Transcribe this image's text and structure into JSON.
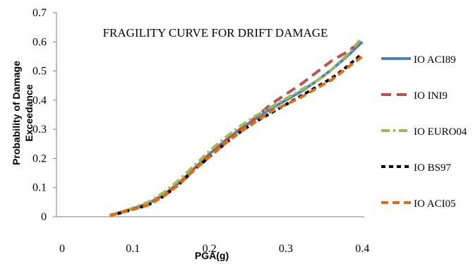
{
  "chart_data": {
    "type": "line",
    "title": "FRAGILITY CURVE FOR DRIFT DAMAGE",
    "xlabel": "PGA(g)",
    "ylabel": "Probability of Damage Exceedance",
    "xlim": [
      0,
      0.4
    ],
    "ylim": [
      0,
      0.7
    ],
    "x_ticks": [
      "0",
      "0.1",
      "0.2",
      "0.3",
      "0.4"
    ],
    "y_ticks": [
      "0",
      "0.1",
      "0.2",
      "0.3",
      "0.4",
      "0.5",
      "0.6",
      "0.7"
    ],
    "grid": false,
    "legend_position": "right",
    "series": [
      {
        "name": "IO ACI89",
        "color": "#4f81bd",
        "dash": "solid",
        "points": [
          [
            0.07,
            0.005
          ],
          [
            0.08,
            0.012
          ],
          [
            0.09,
            0.02
          ],
          [
            0.1,
            0.028
          ],
          [
            0.12,
            0.045
          ],
          [
            0.14,
            0.075
          ],
          [
            0.16,
            0.115
          ],
          [
            0.18,
            0.165
          ],
          [
            0.2,
            0.215
          ],
          [
            0.22,
            0.26
          ],
          [
            0.24,
            0.3
          ],
          [
            0.26,
            0.335
          ],
          [
            0.28,
            0.37
          ],
          [
            0.3,
            0.4
          ],
          [
            0.32,
            0.43
          ],
          [
            0.34,
            0.465
          ],
          [
            0.36,
            0.505
          ],
          [
            0.38,
            0.55
          ],
          [
            0.4,
            0.6
          ]
        ]
      },
      {
        "name": "IO INI9",
        "color": "#c0504d",
        "dash": "longdash",
        "points": [
          [
            0.07,
            0.005
          ],
          [
            0.08,
            0.012
          ],
          [
            0.09,
            0.02
          ],
          [
            0.1,
            0.028
          ],
          [
            0.12,
            0.045
          ],
          [
            0.14,
            0.075
          ],
          [
            0.16,
            0.115
          ],
          [
            0.18,
            0.165
          ],
          [
            0.2,
            0.215
          ],
          [
            0.22,
            0.26
          ],
          [
            0.24,
            0.3
          ],
          [
            0.26,
            0.34
          ],
          [
            0.28,
            0.385
          ],
          [
            0.3,
            0.42
          ],
          [
            0.32,
            0.455
          ],
          [
            0.34,
            0.495
          ],
          [
            0.36,
            0.535
          ],
          [
            0.38,
            0.565
          ],
          [
            0.4,
            0.605
          ]
        ]
      },
      {
        "name": "IO EURO04",
        "color": "#9bbb59",
        "dash": "dashdot",
        "points": [
          [
            0.07,
            0.005
          ],
          [
            0.08,
            0.012
          ],
          [
            0.09,
            0.02
          ],
          [
            0.1,
            0.03
          ],
          [
            0.12,
            0.05
          ],
          [
            0.14,
            0.082
          ],
          [
            0.16,
            0.125
          ],
          [
            0.18,
            0.175
          ],
          [
            0.2,
            0.225
          ],
          [
            0.22,
            0.27
          ],
          [
            0.24,
            0.31
          ],
          [
            0.26,
            0.345
          ],
          [
            0.28,
            0.375
          ],
          [
            0.3,
            0.405
          ],
          [
            0.32,
            0.435
          ],
          [
            0.34,
            0.465
          ],
          [
            0.36,
            0.505
          ],
          [
            0.38,
            0.555
          ],
          [
            0.4,
            0.615
          ]
        ]
      },
      {
        "name": "IO BS97",
        "color": "#000000",
        "dash": "shortdash",
        "points": [
          [
            0.07,
            0.005
          ],
          [
            0.08,
            0.01
          ],
          [
            0.09,
            0.018
          ],
          [
            0.1,
            0.025
          ],
          [
            0.12,
            0.04
          ],
          [
            0.14,
            0.07
          ],
          [
            0.16,
            0.11
          ],
          [
            0.18,
            0.16
          ],
          [
            0.2,
            0.205
          ],
          [
            0.22,
            0.25
          ],
          [
            0.24,
            0.29
          ],
          [
            0.26,
            0.325
          ],
          [
            0.28,
            0.355
          ],
          [
            0.3,
            0.385
          ],
          [
            0.32,
            0.415
          ],
          [
            0.34,
            0.445
          ],
          [
            0.36,
            0.475
          ],
          [
            0.38,
            0.515
          ],
          [
            0.4,
            0.56
          ]
        ]
      },
      {
        "name": "IO ACI05",
        "color": "#e46c0a",
        "dash": "mediumdash",
        "points": [
          [
            0.07,
            0.005
          ],
          [
            0.08,
            0.01
          ],
          [
            0.09,
            0.018
          ],
          [
            0.1,
            0.025
          ],
          [
            0.12,
            0.04
          ],
          [
            0.14,
            0.07
          ],
          [
            0.16,
            0.11
          ],
          [
            0.18,
            0.16
          ],
          [
            0.2,
            0.205
          ],
          [
            0.22,
            0.25
          ],
          [
            0.24,
            0.29
          ],
          [
            0.26,
            0.325
          ],
          [
            0.28,
            0.36
          ],
          [
            0.3,
            0.385
          ],
          [
            0.32,
            0.41
          ],
          [
            0.34,
            0.44
          ],
          [
            0.36,
            0.47
          ],
          [
            0.38,
            0.51
          ],
          [
            0.4,
            0.55
          ]
        ]
      }
    ]
  }
}
